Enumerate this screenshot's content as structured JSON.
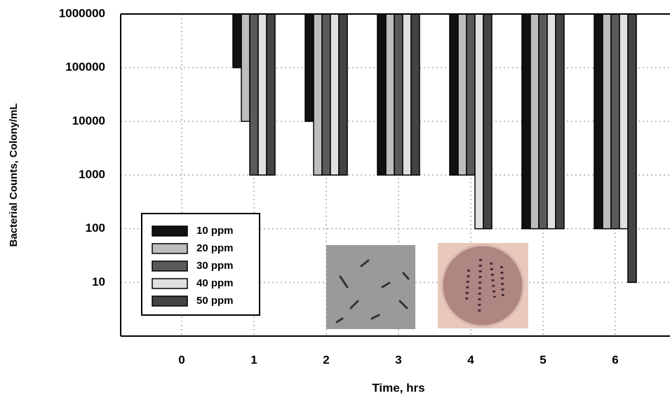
{
  "chart_data": {
    "type": "bar",
    "log_scale": true,
    "grid": true,
    "legend": "lower left",
    "xlabel": "Time, hrs",
    "ylabel": "Bacterial Counts, Colony/mL",
    "categories": [
      "0",
      "1",
      "2",
      "3",
      "4",
      "5",
      "6"
    ],
    "ylim": [
      1,
      1000000
    ],
    "yticks": [
      10,
      100,
      1000,
      10000,
      100000,
      1000000
    ],
    "series": [
      {
        "name": "10 ppm",
        "color": "#111111",
        "values": [
          1000000,
          100000,
          10000,
          1000,
          1000,
          100,
          100
        ]
      },
      {
        "name": "20 ppm",
        "color": "#bdbdbd",
        "values": [
          1000000,
          10000,
          1000,
          1000,
          1000,
          100,
          100
        ]
      },
      {
        "name": "30 ppm",
        "color": "#5a5a5a",
        "values": [
          1000000,
          1000,
          1000,
          1000,
          1000,
          100,
          100
        ]
      },
      {
        "name": "40 ppm",
        "color": "#e0e0e0",
        "values": [
          1000000,
          1000,
          1000,
          1000,
          100,
          100,
          100
        ]
      },
      {
        "name": "50 ppm",
        "color": "#444444",
        "values": [
          1000000,
          1000,
          1000,
          1000,
          100,
          100,
          10
        ]
      }
    ]
  }
}
